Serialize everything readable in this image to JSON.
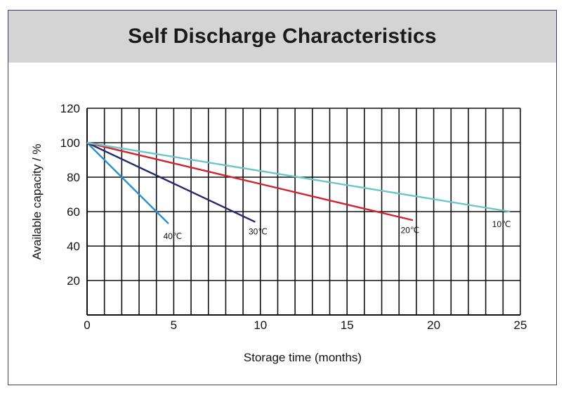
{
  "chart_data": {
    "type": "line",
    "title": "Self Discharge Characteristics",
    "xlabel": "Storage time (months)",
    "ylabel": "Available capacity / %",
    "xlim": [
      0,
      25
    ],
    "ylim": [
      0,
      120
    ],
    "x_ticks": [
      0,
      5,
      10,
      15,
      20,
      25
    ],
    "y_ticks": [
      20,
      40,
      60,
      80,
      100,
      120
    ],
    "x_gridlines_every": 1,
    "y_gridlines_every": 20,
    "grid": true,
    "series": [
      {
        "name": "40℃",
        "color": "#2a8fcf",
        "points": [
          [
            0,
            100
          ],
          [
            4.7,
            53
          ]
        ]
      },
      {
        "name": "30℃",
        "color": "#232a6e",
        "points": [
          [
            0,
            100
          ],
          [
            9.7,
            54
          ]
        ]
      },
      {
        "name": "20℃",
        "color": "#d0242e",
        "points": [
          [
            0,
            100
          ],
          [
            18.8,
            55
          ]
        ]
      },
      {
        "name": "10℃",
        "color": "#6cc4cd",
        "points": [
          [
            0,
            100
          ],
          [
            24.4,
            60
          ]
        ]
      }
    ]
  }
}
